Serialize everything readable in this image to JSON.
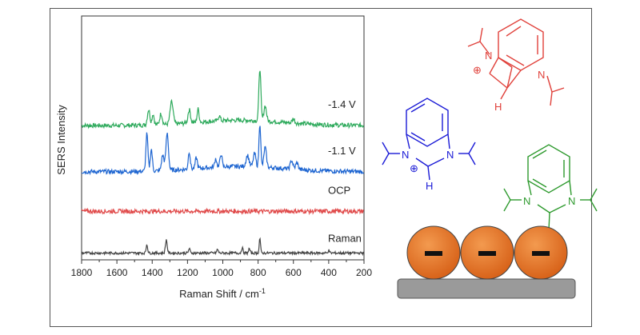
{
  "chart_data": {
    "type": "line",
    "xlabel": "Raman Shift / cm",
    "xlabel_sup": "-1",
    "ylabel": "SERS Intensity",
    "xlim": [
      1800,
      200
    ],
    "x_ticks": [
      "1800",
      "1600",
      "1400",
      "1200",
      "1000",
      "800",
      "600",
      "400",
      "200"
    ],
    "colors": {
      "-1.4 V": "#2eaa5c",
      "-1.1 V": "#1f66d1",
      "OCP": "#e04a4a",
      "Raman": "#444444"
    },
    "series": [
      {
        "name": "-1.4 V",
        "baseline": 3.0,
        "noise": 0.05,
        "peaks": [
          [
            1420,
            0.35,
            10
          ],
          [
            1395,
            0.25,
            8
          ],
          [
            1350,
            0.25,
            10
          ],
          [
            1290,
            0.5,
            12
          ],
          [
            1190,
            0.3,
            10
          ],
          [
            1140,
            0.3,
            8
          ],
          [
            1020,
            0.12,
            8
          ],
          [
            790,
            1.2,
            8
          ],
          [
            760,
            0.35,
            10
          ],
          [
            600,
            0.1,
            10
          ]
        ]
      },
      {
        "name": "-1.1 V",
        "baseline": 1.95,
        "noise": 0.05,
        "peaks": [
          [
            1430,
            0.85,
            8
          ],
          [
            1405,
            0.5,
            8
          ],
          [
            1340,
            0.35,
            10
          ],
          [
            1315,
            0.85,
            10
          ],
          [
            1190,
            0.4,
            8
          ],
          [
            1150,
            0.25,
            8
          ],
          [
            1040,
            0.2,
            8
          ],
          [
            1010,
            0.3,
            8
          ],
          [
            860,
            0.25,
            12
          ],
          [
            820,
            0.3,
            10
          ],
          [
            790,
            1.0,
            7
          ],
          [
            760,
            0.45,
            10
          ],
          [
            610,
            0.2,
            10
          ],
          [
            580,
            0.15,
            10
          ]
        ]
      },
      {
        "name": "OCP",
        "baseline": 1.05,
        "noise": 0.05,
        "peaks": []
      },
      {
        "name": "Raman",
        "baseline": 0.1,
        "noise": 0.03,
        "peaks": [
          [
            1430,
            0.2,
            6
          ],
          [
            1320,
            0.3,
            7
          ],
          [
            1190,
            0.1,
            6
          ],
          [
            1030,
            0.08,
            6
          ],
          [
            890,
            0.12,
            6
          ],
          [
            850,
            0.1,
            6
          ],
          [
            790,
            0.35,
            5
          ],
          [
            400,
            0.06,
            6
          ]
        ]
      }
    ],
    "grid": false
  },
  "molecules": {
    "red": {
      "color": "#e0403a",
      "atoms": [
        "N",
        "N",
        "H"
      ],
      "charge": "⊕"
    },
    "blue": {
      "color": "#1a1ad6",
      "atoms": [
        "N",
        "N",
        "H"
      ],
      "charge": "⊕"
    },
    "green": {
      "color": "#2e9a2e",
      "atoms": [
        "N",
        "N"
      ]
    }
  },
  "surface": {
    "particle_color": "#e8731e",
    "particle_charge": "−",
    "substrate_color": "#9a9a9a"
  }
}
